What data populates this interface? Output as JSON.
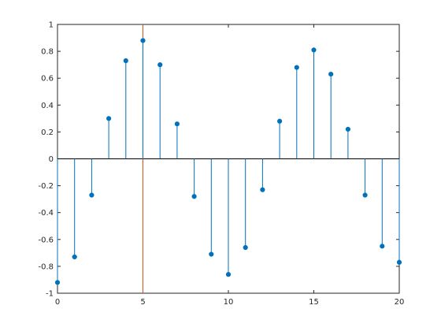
{
  "chart_data": {
    "type": "stem",
    "title": "",
    "xlabel": "",
    "ylabel": "",
    "xlim": [
      0,
      20
    ],
    "ylim": [
      -1,
      1
    ],
    "x_ticks": [
      0,
      5,
      10,
      15,
      20
    ],
    "y_ticks": [
      -1,
      -0.8,
      -0.6,
      -0.4,
      -0.2,
      0,
      0.2,
      0.4,
      0.6,
      0.8,
      1
    ],
    "x_tick_labels": [
      "0",
      "5",
      "10",
      "15",
      "20"
    ],
    "y_tick_labels": [
      "-1",
      "-0.8",
      "-0.6",
      "-0.4",
      "-0.2",
      "0",
      "0.2",
      "0.4",
      "0.6",
      "0.8",
      "1"
    ],
    "grid": false,
    "legend": "none",
    "series": [
      {
        "x": [
          0,
          1,
          2,
          3,
          4,
          5,
          6,
          7,
          8,
          9,
          10,
          11,
          12,
          13,
          14,
          15,
          16,
          17,
          18,
          19,
          20
        ],
        "y": [
          -0.92,
          -0.73,
          -0.27,
          0.3,
          0.73,
          0.88,
          0.7,
          0.26,
          -0.28,
          -0.71,
          -0.86,
          -0.66,
          -0.23,
          0.28,
          0.68,
          0.81,
          0.63,
          0.22,
          -0.27,
          -0.65,
          -0.77
        ],
        "color": "#0072bd"
      }
    ],
    "vertical_line": {
      "x": 5,
      "color": "#d95319"
    },
    "baseline": {
      "y": 0,
      "color": "#000000"
    }
  }
}
